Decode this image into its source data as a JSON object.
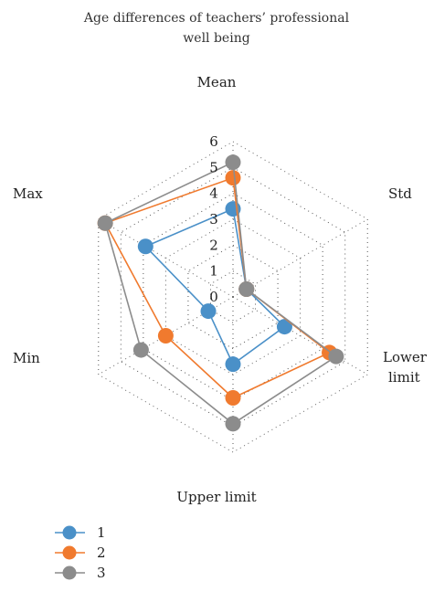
{
  "chart_data": {
    "type": "radar",
    "title": "Age differences of teachers’ professional well being",
    "title_lines": [
      "Age differences of teachers’ professional",
      "well being"
    ],
    "axes": [
      "Mean",
      "Std",
      "Lower limit",
      "Upper limit",
      "Min",
      "Max"
    ],
    "axis_label_lines": [
      [
        "Mean"
      ],
      [
        "Std"
      ],
      [
        "Lower",
        "limit"
      ],
      [
        "Upper limit"
      ],
      [
        "Min"
      ],
      [
        "Max"
      ]
    ],
    "rlim": [
      0,
      6
    ],
    "ticks": [
      "0",
      "1",
      "2",
      "3",
      "4",
      "5",
      "6"
    ],
    "grid": true,
    "legend_position": "bottom-left",
    "series": [
      {
        "name": "1",
        "color": "#4a90c8",
        "values": [
          3.4,
          0.6,
          2.3,
          2.6,
          1.1,
          3.9
        ]
      },
      {
        "name": "2",
        "color": "#f07a2e",
        "values": [
          4.6,
          0.6,
          4.3,
          3.9,
          3.0,
          5.7
        ]
      },
      {
        "name": "3",
        "color": "#8c8c8c",
        "values": [
          5.2,
          0.6,
          4.6,
          4.9,
          4.1,
          5.7
        ]
      }
    ]
  }
}
